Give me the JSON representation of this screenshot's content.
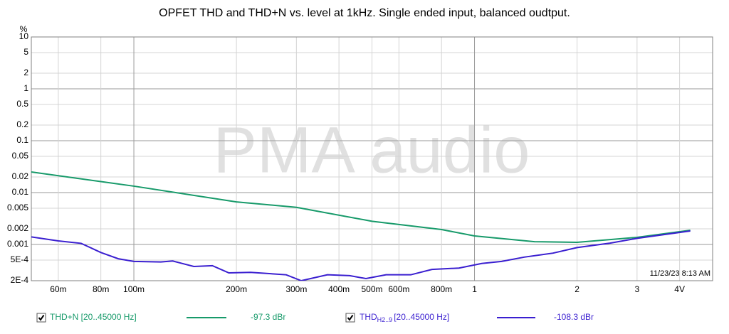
{
  "chart_data": {
    "type": "line",
    "title": "OPFET THD and THD+N vs. level at 1kHz. Single ended input, balanced oudtput.",
    "y_unit": "%",
    "watermark": "PMA audio",
    "timestamp": "11/23/23 8:13 AM",
    "xlog": true,
    "ylog": true,
    "grid": true,
    "xlim": [
      0.05,
      5
    ],
    "ylim": [
      0.0002,
      10
    ],
    "xticks": [
      {
        "value": 0.06,
        "label": "60m"
      },
      {
        "value": 0.08,
        "label": "80m"
      },
      {
        "value": 0.1,
        "label": "100m"
      },
      {
        "value": 0.2,
        "label": "200m"
      },
      {
        "value": 0.3,
        "label": "300m"
      },
      {
        "value": 0.4,
        "label": "400m"
      },
      {
        "value": 0.5,
        "label": "500m"
      },
      {
        "value": 0.6,
        "label": "600m"
      },
      {
        "value": 0.8,
        "label": "800m"
      },
      1,
      2,
      3,
      {
        "value": 4,
        "label": "4V"
      }
    ],
    "yticks": [
      10,
      5,
      2,
      1,
      0.5,
      0.2,
      0.1,
      0.05,
      0.02,
      0.01,
      0.005,
      0.002,
      0.001,
      {
        "value": 0.0005,
        "label": "5E-4"
      },
      {
        "value": 0.0002,
        "label": "2E-4"
      }
    ],
    "series": [
      {
        "name": "THD+N [20..45000 Hz]",
        "readout": "-97.3 dBr",
        "color": "#179a6a",
        "x": [
          0.05,
          0.1,
          0.2,
          0.3,
          0.5,
          0.8,
          1,
          1.5,
          2,
          3,
          4.3
        ],
        "values": [
          0.025,
          0.0133,
          0.0066,
          0.0052,
          0.0028,
          0.00194,
          0.00146,
          0.00113,
          0.0011,
          0.00137,
          0.00188
        ]
      },
      {
        "name": "THD",
        "subscript": "H2..9",
        "band": "[20..45000 Hz]",
        "readout": "-108.3 dBr",
        "color": "#3a1fd0",
        "x": [
          0.05,
          0.06,
          0.07,
          0.08,
          0.09,
          0.1,
          0.12,
          0.13,
          0.15,
          0.17,
          0.19,
          0.22,
          0.28,
          0.31,
          0.37,
          0.43,
          0.48,
          0.55,
          0.65,
          0.75,
          0.9,
          1.05,
          1.2,
          1.4,
          1.7,
          2,
          2.5,
          3,
          4.3
        ],
        "values": [
          0.0014,
          0.00117,
          0.00105,
          0.0007,
          0.00053,
          0.00047,
          0.00046,
          0.00048,
          0.000376,
          0.00039,
          0.000283,
          0.00029,
          0.00026,
          0.0002,
          0.00026,
          0.00025,
          0.00022,
          0.00026,
          0.00026,
          0.00033,
          0.00035,
          0.00043,
          0.00047,
          0.00057,
          0.00068,
          0.00087,
          0.00106,
          0.00131,
          0.00182
        ]
      }
    ]
  }
}
